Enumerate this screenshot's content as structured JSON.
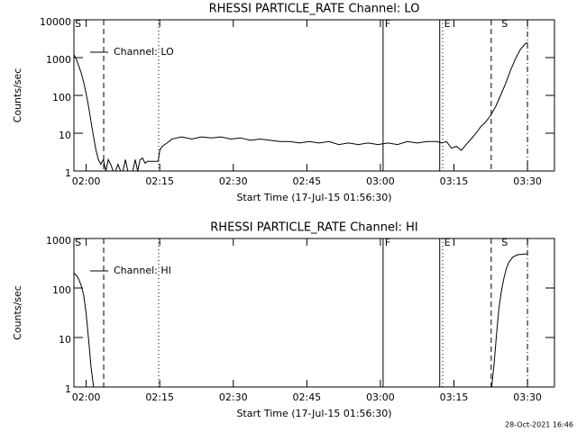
{
  "chart_data": [
    {
      "type": "line",
      "title": "RHESSI PARTICLE_RATE Channel: LO",
      "xlabel": "Start Time (17-Jul-15 01:56:30)",
      "ylabel": "Counts/sec",
      "log": true,
      "legend": "upper left",
      "xlim": [
        1,
        99
      ],
      "ylim": [
        1,
        10000
      ],
      "xticks": [
        {
          "value": 3.5,
          "label": "02:00"
        },
        {
          "value": 18.5,
          "label": "02:15"
        },
        {
          "value": 33.5,
          "label": "02:30"
        },
        {
          "value": 48.5,
          "label": "02:45"
        },
        {
          "value": 63.5,
          "label": "03:00"
        },
        {
          "value": 78.5,
          "label": "03:15"
        },
        {
          "value": 93.5,
          "label": "03:30"
        }
      ],
      "yticks": [
        1,
        10,
        100,
        1000,
        10000
      ],
      "x": [
        1,
        1.5,
        2,
        2.5,
        3,
        3.5,
        4,
        4.5,
        5,
        5.5,
        6,
        6.5,
        7,
        7.5,
        8,
        8.5,
        9,
        9.5,
        10,
        10.5,
        11,
        11.5,
        12,
        12.5,
        13,
        13.5,
        14,
        14.5,
        15,
        15.5,
        16,
        16.5,
        17,
        17.5,
        18.2,
        18.5,
        19,
        20,
        21,
        22,
        23,
        25,
        27,
        29,
        31,
        33,
        35,
        37,
        39,
        41,
        43,
        45,
        47,
        49,
        51,
        53,
        55,
        57,
        59,
        61,
        63,
        65,
        67,
        69,
        71,
        73,
        75,
        76,
        77,
        78,
        79,
        80,
        81,
        82,
        83,
        84,
        85,
        86,
        87,
        88,
        89,
        90,
        91,
        92,
        93,
        93.5
      ],
      "series": [
        {
          "name": "Channel: LO",
          "color": "#000000",
          "values": [
            1200,
            900,
            600,
            380,
            220,
            110,
            50,
            20,
            8,
            3.5,
            2,
            1.5,
            2,
            1,
            2,
            1.5,
            1,
            1,
            1.5,
            1,
            1,
            2,
            1,
            1,
            1,
            2,
            1,
            2,
            2.2,
            1.6,
            1.8,
            1.8,
            1.8,
            1.8,
            1.8,
            3.5,
            4.5,
            5.5,
            7,
            7.5,
            8,
            7,
            8,
            7.5,
            8,
            7,
            7.5,
            6.5,
            7,
            6.5,
            6,
            6,
            5.5,
            6,
            5.5,
            6,
            5,
            5.5,
            5,
            5.5,
            5,
            5.5,
            5,
            6,
            5.5,
            6,
            6,
            5.5,
            6,
            4,
            4.5,
            3.5,
            5,
            7,
            10,
            15,
            20,
            30,
            50,
            100,
            200,
            450,
            900,
            1600,
            2300,
            2500
          ]
        }
      ],
      "markers": [
        {
          "x": 7.07,
          "style": "dashed"
        },
        {
          "x": 18.28,
          "style": "dotted"
        },
        {
          "x": 64.05,
          "style": "solid"
        },
        {
          "x": 75.6,
          "style": "solid"
        },
        {
          "x": 76.2,
          "style": "dotted"
        },
        {
          "x": 86.1,
          "style": "dashed"
        },
        {
          "x": 93.5,
          "style": "dashdot"
        }
      ],
      "marker_labels": [
        {
          "x": 1.2,
          "text": "S"
        },
        {
          "x": 64.4,
          "text": "F"
        },
        {
          "x": 76.5,
          "text": "E"
        },
        {
          "x": 88.2,
          "text": "S"
        }
      ]
    },
    {
      "type": "line",
      "title": "RHESSI PARTICLE_RATE Channel: HI",
      "xlabel": "Start Time (17-Jul-15 01:56:30)",
      "ylabel": "Counts/sec",
      "log": true,
      "legend": "upper left",
      "xlim": [
        1,
        99
      ],
      "ylim": [
        1,
        1000
      ],
      "xticks": [
        {
          "value": 3.5,
          "label": "02:00"
        },
        {
          "value": 18.5,
          "label": "02:15"
        },
        {
          "value": 33.5,
          "label": "02:30"
        },
        {
          "value": 48.5,
          "label": "02:45"
        },
        {
          "value": 63.5,
          "label": "03:00"
        },
        {
          "value": 78.5,
          "label": "03:15"
        },
        {
          "value": 93.5,
          "label": "03:30"
        }
      ],
      "yticks": [
        1,
        10,
        100,
        1000
      ],
      "x": [
        1,
        1.5,
        2,
        2.5,
        3,
        3.5,
        4,
        4.5,
        5,
        45,
        86.2,
        86.7,
        87.2,
        87.7,
        88.2,
        88.7,
        89.2,
        89.7,
        90.5,
        91.5,
        93.5
      ],
      "series": [
        {
          "name": "Channel: HI",
          "color": "#000000",
          "values": [
            200,
            180,
            150,
            110,
            70,
            30,
            9,
            2.5,
            1,
            null,
            1,
            3,
            12,
            40,
            90,
            160,
            250,
            330,
            420,
            470,
            490
          ]
        }
      ],
      "markers": [
        {
          "x": 7.07,
          "style": "dashed"
        },
        {
          "x": 18.28,
          "style": "dotted"
        },
        {
          "x": 64.05,
          "style": "solid"
        },
        {
          "x": 75.6,
          "style": "solid"
        },
        {
          "x": 76.2,
          "style": "dotted"
        },
        {
          "x": 86.1,
          "style": "dashed"
        },
        {
          "x": 93.5,
          "style": "dashdot"
        }
      ],
      "marker_labels": [
        {
          "x": 1.2,
          "text": "S"
        },
        {
          "x": 64.4,
          "text": "F"
        },
        {
          "x": 76.5,
          "text": "E"
        },
        {
          "x": 88.2,
          "text": "S"
        }
      ]
    }
  ],
  "timestamp": "28-Oct-2021 16:46"
}
